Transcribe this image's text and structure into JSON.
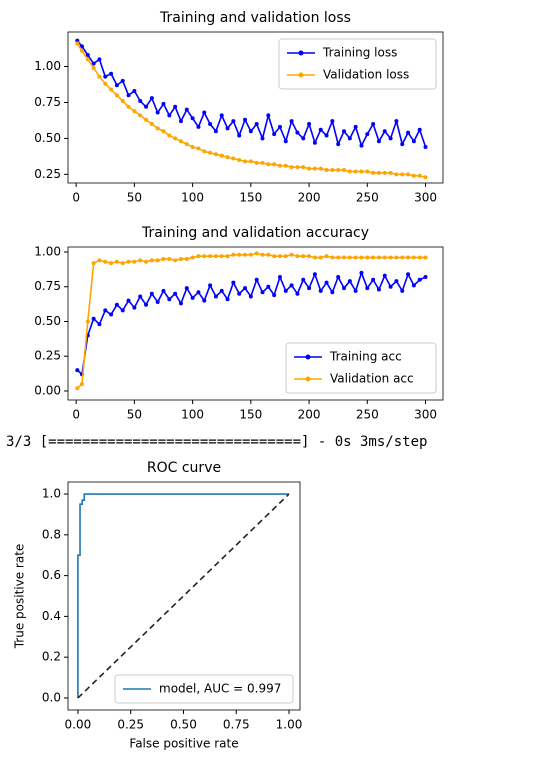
{
  "chart_data": [
    {
      "type": "line",
      "title": "Training and validation loss",
      "x": [
        1,
        5,
        10,
        15,
        20,
        25,
        30,
        35,
        40,
        45,
        50,
        55,
        60,
        65,
        70,
        75,
        80,
        85,
        90,
        95,
        100,
        105,
        110,
        115,
        120,
        125,
        130,
        135,
        140,
        145,
        150,
        155,
        160,
        165,
        170,
        175,
        180,
        185,
        190,
        195,
        200,
        205,
        210,
        215,
        220,
        225,
        230,
        235,
        240,
        245,
        250,
        255,
        260,
        265,
        270,
        275,
        280,
        285,
        290,
        295,
        300
      ],
      "series": [
        {
          "name": "Training loss",
          "color": "#0000ff",
          "markers": true,
          "values": [
            1.18,
            1.14,
            1.08,
            1.02,
            1.05,
            0.93,
            0.95,
            0.87,
            0.9,
            0.8,
            0.83,
            0.76,
            0.72,
            0.78,
            0.68,
            0.74,
            0.66,
            0.72,
            0.62,
            0.7,
            0.64,
            0.58,
            0.68,
            0.6,
            0.55,
            0.66,
            0.57,
            0.62,
            0.52,
            0.63,
            0.55,
            0.6,
            0.5,
            0.66,
            0.53,
            0.58,
            0.48,
            0.62,
            0.54,
            0.5,
            0.6,
            0.47,
            0.56,
            0.52,
            0.62,
            0.46,
            0.55,
            0.5,
            0.58,
            0.45,
            0.53,
            0.6,
            0.48,
            0.55,
            0.5,
            0.62,
            0.46,
            0.54,
            0.48,
            0.56,
            0.44
          ]
        },
        {
          "name": "Validation loss",
          "color": "#ffa500",
          "markers": true,
          "values": [
            1.16,
            1.11,
            1.05,
            0.99,
            0.93,
            0.88,
            0.84,
            0.8,
            0.76,
            0.72,
            0.69,
            0.66,
            0.63,
            0.6,
            0.57,
            0.55,
            0.52,
            0.5,
            0.48,
            0.46,
            0.44,
            0.43,
            0.41,
            0.4,
            0.39,
            0.38,
            0.37,
            0.36,
            0.35,
            0.34,
            0.34,
            0.33,
            0.33,
            0.32,
            0.32,
            0.31,
            0.31,
            0.3,
            0.3,
            0.3,
            0.29,
            0.29,
            0.29,
            0.28,
            0.28,
            0.28,
            0.28,
            0.27,
            0.27,
            0.27,
            0.27,
            0.26,
            0.26,
            0.26,
            0.26,
            0.25,
            0.25,
            0.25,
            0.24,
            0.24,
            0.23
          ]
        }
      ],
      "xlim": [
        -7,
        315
      ],
      "xticks": [
        0,
        50,
        100,
        150,
        200,
        250,
        300
      ],
      "ylim": [
        0.19,
        1.24
      ],
      "yticks": [
        0.25,
        {
          "value": 0.5,
          "label": "0.50"
        },
        0.75,
        {
          "value": 1.0,
          "label": "1.00"
        }
      ],
      "legend": "upper right"
    },
    {
      "type": "line",
      "title": "Training and validation accuracy",
      "x": [
        1,
        5,
        10,
        15,
        20,
        25,
        30,
        35,
        40,
        45,
        50,
        55,
        60,
        65,
        70,
        75,
        80,
        85,
        90,
        95,
        100,
        105,
        110,
        115,
        120,
        125,
        130,
        135,
        140,
        145,
        150,
        155,
        160,
        165,
        170,
        175,
        180,
        185,
        190,
        195,
        200,
        205,
        210,
        215,
        220,
        225,
        230,
        235,
        240,
        245,
        250,
        255,
        260,
        265,
        270,
        275,
        280,
        285,
        290,
        295,
        300
      ],
      "series": [
        {
          "name": "Training acc",
          "color": "#0000ff",
          "markers": true,
          "values": [
            0.15,
            0.12,
            0.4,
            0.52,
            0.48,
            0.58,
            0.55,
            0.62,
            0.58,
            0.65,
            0.6,
            0.68,
            0.62,
            0.7,
            0.64,
            0.72,
            0.66,
            0.7,
            0.63,
            0.74,
            0.67,
            0.71,
            0.65,
            0.76,
            0.68,
            0.72,
            0.66,
            0.78,
            0.7,
            0.74,
            0.68,
            0.8,
            0.71,
            0.75,
            0.69,
            0.82,
            0.72,
            0.76,
            0.7,
            0.8,
            0.74,
            0.84,
            0.72,
            0.78,
            0.71,
            0.82,
            0.74,
            0.79,
            0.72,
            0.85,
            0.74,
            0.8,
            0.73,
            0.83,
            0.75,
            0.79,
            0.72,
            0.84,
            0.76,
            0.8,
            0.82
          ]
        },
        {
          "name": "Validation acc",
          "color": "#ffa500",
          "markers": true,
          "values": [
            0.02,
            0.05,
            0.5,
            0.92,
            0.94,
            0.93,
            0.92,
            0.93,
            0.92,
            0.93,
            0.93,
            0.94,
            0.93,
            0.94,
            0.94,
            0.95,
            0.95,
            0.94,
            0.95,
            0.95,
            0.96,
            0.97,
            0.97,
            0.97,
            0.97,
            0.97,
            0.97,
            0.98,
            0.98,
            0.98,
            0.98,
            0.99,
            0.98,
            0.98,
            0.97,
            0.97,
            0.97,
            0.98,
            0.97,
            0.97,
            0.97,
            0.96,
            0.96,
            0.97,
            0.96,
            0.96,
            0.96,
            0.96,
            0.96,
            0.96,
            0.96,
            0.96,
            0.96,
            0.96,
            0.96,
            0.96,
            0.96,
            0.96,
            0.96,
            0.96,
            0.96
          ]
        }
      ],
      "xlim": [
        -7,
        315
      ],
      "xticks": [
        0,
        50,
        100,
        150,
        200,
        250,
        300
      ],
      "ylim": [
        -0.065,
        1.036
      ],
      "yticks": [
        {
          "value": 0,
          "label": "0.00"
        },
        0.25,
        {
          "value": 0.5,
          "label": "0.50"
        },
        0.75,
        {
          "value": 1.0,
          "label": "1.00"
        }
      ],
      "legend": "lower right"
    },
    {
      "type": "line",
      "title": "ROC curve",
      "xlabel": "False positive rate",
      "ylabel": "True positive rate",
      "series": [
        {
          "name": "model, AUC = 0.997",
          "color": "#1f77b4",
          "x": [
            0,
            0,
            0.01,
            0.01,
            0.02,
            0.02,
            0.03,
            0.03,
            1
          ],
          "values": [
            0,
            0.7,
            0.7,
            0.95,
            0.95,
            0.97,
            0.97,
            1,
            1
          ]
        },
        {
          "color": "#222222",
          "dash": true,
          "x": [
            0,
            1
          ],
          "values": [
            0,
            1
          ]
        }
      ],
      "xlim": [
        -0.047,
        1.052
      ],
      "xticks": [
        {
          "value": 0,
          "label": "0.00"
        },
        0.25,
        {
          "value": 0.5,
          "label": "0.50"
        },
        0.75,
        {
          "value": 1,
          "label": "1.00"
        }
      ],
      "ylim": [
        -0.059,
        1.059
      ],
      "yticks": [
        {
          "value": 0,
          "label": "0.0"
        },
        0.2,
        0.4,
        0.6,
        0.8,
        {
          "value": 1,
          "label": "1.0"
        }
      ],
      "legend": "lower right"
    }
  ],
  "console_output": "3/3 [==============================] - 0s 3ms/step"
}
